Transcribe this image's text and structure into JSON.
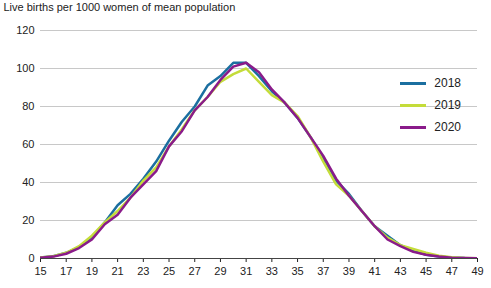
{
  "chart_data": {
    "type": "line",
    "y_label": "Live births per 1000 women of mean population",
    "x": [
      15,
      16,
      17,
      18,
      19,
      20,
      21,
      22,
      23,
      24,
      25,
      26,
      27,
      28,
      29,
      30,
      31,
      32,
      33,
      34,
      35,
      36,
      37,
      38,
      39,
      40,
      41,
      42,
      43,
      44,
      45,
      46,
      47,
      48,
      49
    ],
    "series": [
      {
        "name": "2018",
        "color": "#1b6fa0",
        "values": [
          0.5,
          1.2,
          3,
          6,
          11,
          19,
          28,
          34,
          42,
          51,
          62,
          72,
          80,
          91,
          96,
          103,
          103,
          96,
          88,
          82,
          74,
          64,
          53,
          41,
          34,
          25,
          17,
          12,
          7,
          4,
          2,
          1,
          0.5,
          0.2,
          0.1
        ]
      },
      {
        "name": "2019",
        "color": "#c4dc3a",
        "values": [
          0.5,
          1.2,
          3,
          6.5,
          12,
          19,
          25,
          32,
          41,
          48,
          59,
          68,
          78,
          85,
          93,
          97,
          100,
          93,
          86,
          82,
          75,
          64,
          51,
          39,
          33,
          25,
          17,
          11,
          7,
          5,
          3,
          1.5,
          0.6,
          0.3,
          0.1
        ]
      },
      {
        "name": "2020",
        "color": "#8a1b8a",
        "values": [
          0.4,
          1,
          2.5,
          5.5,
          10,
          18,
          23,
          32,
          39,
          46,
          59,
          67,
          78,
          85,
          94,
          101,
          103,
          98,
          89,
          82,
          74,
          64,
          54,
          42,
          33,
          25,
          17,
          10,
          6.5,
          3.5,
          2,
          1,
          0.4,
          0.2,
          0.1
        ]
      }
    ],
    "xlim": [
      15,
      49
    ],
    "xticks": [
      15,
      17,
      19,
      21,
      23,
      25,
      27,
      29,
      31,
      33,
      35,
      37,
      39,
      41,
      43,
      45,
      47,
      49
    ],
    "ylim": [
      0,
      120
    ],
    "yticks": [
      0,
      20,
      40,
      60,
      80,
      100,
      120
    ],
    "grid": true,
    "legend": "upper right"
  }
}
